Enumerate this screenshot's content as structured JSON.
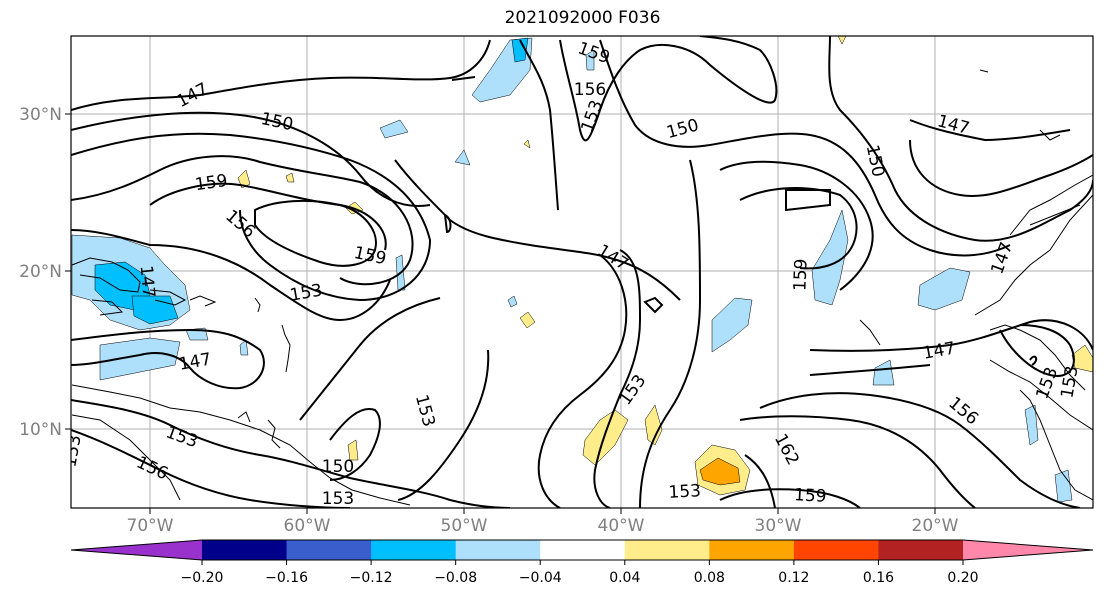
{
  "title": "2021092000 F036",
  "map": {
    "lon_labels": [
      "70°W",
      "60°W",
      "50°W",
      "40°W",
      "30°W",
      "20°W"
    ],
    "lat_labels": [
      "30°N",
      "20°N",
      "10°N"
    ],
    "contour_labels": [
      "147",
      "150",
      "156",
      "159",
      "153",
      "147",
      "150",
      "159",
      "156",
      "159",
      "153",
      "147",
      "153",
      "150",
      "153",
      "156",
      "153",
      "147",
      "153",
      "159",
      "162",
      "153",
      "159",
      "150",
      "147",
      "147",
      "156",
      "153",
      "153",
      "147",
      "153",
      "159"
    ],
    "shading_colors": {
      "light_blue": "#aee0fb",
      "medium_blue": "#00bfff",
      "light_yellow": "#ffec8b",
      "orange": "#ffa500",
      "orange_red": "#ff4500"
    }
  },
  "colorbar": {
    "tick_labels": [
      "−0.20",
      "−0.16",
      "−0.12",
      "−0.08",
      "−0.04",
      "0.04",
      "0.08",
      "0.12",
      "0.16",
      "0.20"
    ],
    "colors": [
      "#9932cc",
      "#00008b",
      "#3a5fcd",
      "#00bfff",
      "#aee0fb",
      "#ffffff",
      "#ffec8b",
      "#ffa500",
      "#ff4500",
      "#b22222",
      "#ff88aa"
    ]
  }
}
